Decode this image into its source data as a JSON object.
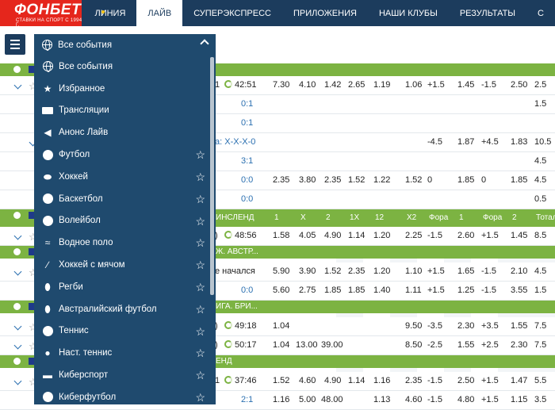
{
  "nav": {
    "logo": "ФОНБЕТ",
    "logo_sub": "СТАВКИ НА СПОРТ С 1994 Г.",
    "items": [
      "ЛИНИЯ",
      "ЛАЙВ",
      "СУПЕРЭКСПРЕСС",
      "ПРИЛОЖЕНИЯ",
      "НАШИ КЛУБЫ",
      "РЕЗУЛЬТАТЫ",
      "С"
    ],
    "active": "ЛАЙВ"
  },
  "selector": {
    "label": "Все события"
  },
  "dropdown": {
    "items": [
      {
        "label": "Все события",
        "icon": "globe-icon",
        "star": false
      },
      {
        "label": "Избранное",
        "icon": "star-icon",
        "star": false
      },
      {
        "label": "Трансляции",
        "icon": "screen-icon",
        "star": false
      },
      {
        "label": "Анонс Лайв",
        "icon": "megaphone-icon",
        "star": false
      },
      {
        "label": "Футбол",
        "icon": "football-icon",
        "star": true
      },
      {
        "label": "Хоккей",
        "icon": "hockey-icon",
        "star": true
      },
      {
        "label": "Баскетбол",
        "icon": "basketball-icon",
        "star": true
      },
      {
        "label": "Волейбол",
        "icon": "volleyball-icon",
        "star": true
      },
      {
        "label": "Водное поло",
        "icon": "waterpolo-icon",
        "star": true
      },
      {
        "label": "Хоккей с мячом",
        "icon": "bandy-icon",
        "star": true
      },
      {
        "label": "Регби",
        "icon": "rugby-icon",
        "star": true
      },
      {
        "label": "Австралийский футбол",
        "icon": "aussie-football-icon",
        "star": true
      },
      {
        "label": "Теннис",
        "icon": "tennis-icon",
        "star": true
      },
      {
        "label": "Наст. теннис",
        "icon": "table-tennis-icon",
        "star": true
      },
      {
        "label": "Киберспорт",
        "icon": "gamepad-icon",
        "star": true
      },
      {
        "label": "Киберфутбол",
        "icon": "cyberfootball-icon",
        "star": true
      }
    ]
  },
  "table": {
    "headers": [
      "1",
      "X",
      "2",
      "1X",
      "12",
      "X2",
      "Фора",
      "1",
      "Фора",
      "2",
      "Тотал"
    ],
    "rows": [
      {
        "kind": "group",
        "title": ""
      },
      {
        "kind": "event",
        "title": "1",
        "time": "42:51",
        "cells": [
          "7.30",
          "4.10",
          "1.42",
          "2.65",
          "1.19",
          "1.06",
          "+1.5",
          "1.45",
          "-1.5",
          "2.50",
          "2.5"
        ]
      },
      {
        "kind": "sub",
        "title": "0:1",
        "cells": [
          "",
          "",
          "",
          "",
          "",
          "",
          "",
          "",
          "",
          "",
          "1.5"
        ]
      },
      {
        "kind": "sub",
        "title": "0:1",
        "cells": [
          "",
          "",
          "",
          "",
          "",
          "",
          "",
          "",
          "",
          "",
          ""
        ]
      },
      {
        "kind": "sub2",
        "title": "а: X-X-X-0",
        "cells": [
          "",
          "",
          "",
          "",
          "",
          "",
          "-4.5",
          "1.87",
          "+4.5",
          "1.83",
          "10.5"
        ]
      },
      {
        "kind": "sub",
        "title": "3:1",
        "cells": [
          "",
          "",
          "",
          "",
          "",
          "",
          "",
          "",
          "",
          "",
          "4.5"
        ]
      },
      {
        "kind": "sub",
        "title": "0:0",
        "cells": [
          "2.35",
          "3.80",
          "2.35",
          "1.52",
          "1.22",
          "1.52",
          "0",
          "1.85",
          "0",
          "1.85",
          "4.5"
        ]
      },
      {
        "kind": "sub",
        "title": "0:0",
        "cells": [
          "",
          "",
          "",
          "",
          "",
          "",
          "",
          "",
          "",
          "",
          "0.5"
        ]
      },
      {
        "kind": "group",
        "title": "ИНСЛЕНД",
        "showHeaders": true
      },
      {
        "kind": "event",
        "title": ")",
        "time": "48:56",
        "cells": [
          "1.58",
          "4.05",
          "4.90",
          "1.14",
          "1.20",
          "2.25",
          "-1.5",
          "2.60",
          "+1.5",
          "1.45",
          "8.5"
        ]
      },
      {
        "kind": "group",
        "title": "Ж. АВСТР..."
      },
      {
        "kind": "event",
        "title": "е начался",
        "time": "",
        "cells": [
          "5.90",
          "3.90",
          "1.52",
          "2.35",
          "1.20",
          "1.10",
          "+1.5",
          "1.65",
          "-1.5",
          "2.10",
          "4.5"
        ]
      },
      {
        "kind": "sub",
        "title": "0:0",
        "cells": [
          "5.60",
          "2.75",
          "1.85",
          "1.85",
          "1.40",
          "1.11",
          "+1.5",
          "1.25",
          "-1.5",
          "3.55",
          "1.5"
        ]
      },
      {
        "kind": "group",
        "title": "ИГА. БРИ..."
      },
      {
        "kind": "event",
        "title": ")",
        "time": "49:18",
        "cells": [
          "1.04",
          "",
          "",
          "",
          "",
          "9.50",
          "-3.5",
          "2.30",
          "+3.5",
          "1.55",
          "7.5"
        ]
      },
      {
        "kind": "event",
        "title": ")",
        "time": "50:17",
        "cells": [
          "1.04",
          "13.00",
          "39.00",
          "",
          "",
          "8.50",
          "-2.5",
          "1.55",
          "+2.5",
          "2.30",
          "7.5"
        ]
      },
      {
        "kind": "group",
        "title": "ЕНД"
      },
      {
        "kind": "event",
        "title": "1",
        "time": "37:46",
        "cells": [
          "1.52",
          "4.60",
          "4.90",
          "1.14",
          "1.16",
          "2.35",
          "-1.5",
          "2.50",
          "+1.5",
          "1.47",
          "5.5"
        ]
      },
      {
        "kind": "sub",
        "title": "2:1",
        "cells": [
          "1.16",
          "5.00",
          "48.00",
          "",
          "1.13",
          "4.60",
          "-1.5",
          "4.80",
          "+1.5",
          "1.15",
          "3.5"
        ]
      }
    ]
  }
}
